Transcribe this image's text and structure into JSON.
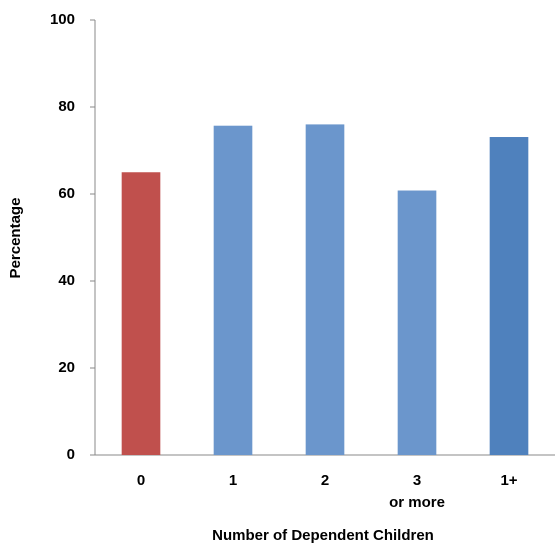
{
  "chart_data": {
    "type": "bar",
    "x_label": "Number of Dependent Children",
    "y_label": "Percentage",
    "categories": [
      "0",
      "1",
      "2",
      "3 or more",
      "1+"
    ],
    "values": [
      65,
      75.7,
      76,
      60.8,
      73.1
    ],
    "colors": [
      "#c0504d",
      "#6b96cc",
      "#6b96cc",
      "#6b96cc",
      "#4f81bd"
    ],
    "ylim": [
      0,
      100
    ],
    "yticks": [
      0,
      20,
      40,
      60,
      80,
      100
    ],
    "grid": false
  }
}
